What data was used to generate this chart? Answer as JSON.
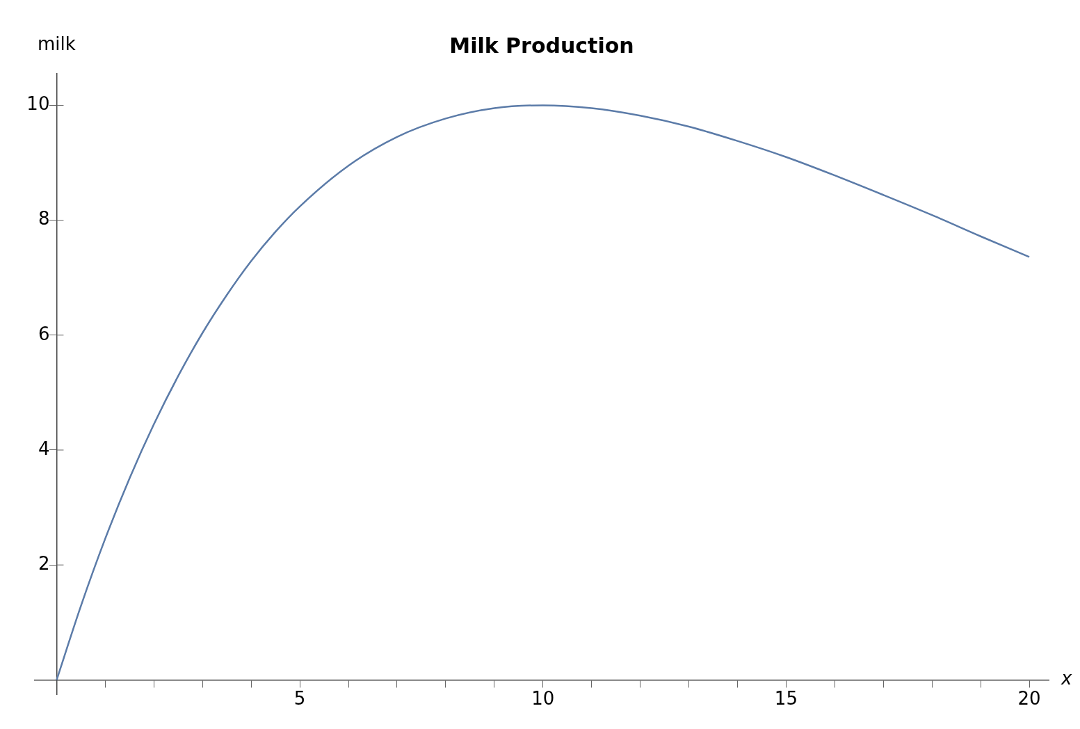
{
  "chart_data": {
    "type": "line",
    "title": "Milk Production",
    "xlabel": "x",
    "ylabel": "milk",
    "x": [
      0,
      0.5,
      1,
      1.5,
      2,
      2.5,
      3,
      3.5,
      4,
      4.5,
      5,
      6,
      7,
      8,
      9,
      10,
      11,
      12,
      13,
      14,
      15,
      16,
      17,
      18,
      19,
      20
    ],
    "series": [
      {
        "color": "#5b7ba8",
        "values": [
          0,
          1.29,
          2.46,
          3.51,
          4.45,
          5.29,
          6.04,
          6.7,
          7.29,
          7.8,
          8.24,
          8.95,
          9.45,
          9.77,
          9.95,
          10,
          9.95,
          9.82,
          9.63,
          9.38,
          9.1,
          8.78,
          8.44,
          8.09,
          7.72,
          7.36
        ]
      }
    ],
    "xlim": [
      -0.45,
      20.4
    ],
    "ylim": [
      -0.25,
      10.55
    ],
    "xticks": [
      {
        "value": 1,
        "label": null
      },
      {
        "value": 2,
        "label": null
      },
      {
        "value": 3,
        "label": null
      },
      {
        "value": 4,
        "label": null
      },
      5,
      {
        "value": 6,
        "label": null
      },
      {
        "value": 7,
        "label": null
      },
      {
        "value": 8,
        "label": null
      },
      {
        "value": 9,
        "label": null
      },
      10,
      {
        "value": 11,
        "label": null
      },
      {
        "value": 12,
        "label": null
      },
      {
        "value": 13,
        "label": null
      },
      {
        "value": 14,
        "label": null
      },
      15,
      {
        "value": 16,
        "label": null
      },
      {
        "value": 17,
        "label": null
      },
      {
        "value": 18,
        "label": null
      },
      {
        "value": 19,
        "label": null
      },
      20
    ],
    "yticks": [
      2,
      4,
      6,
      8,
      10
    ],
    "grid": false,
    "legend": false,
    "marker": "none",
    "line_style": "solid"
  }
}
